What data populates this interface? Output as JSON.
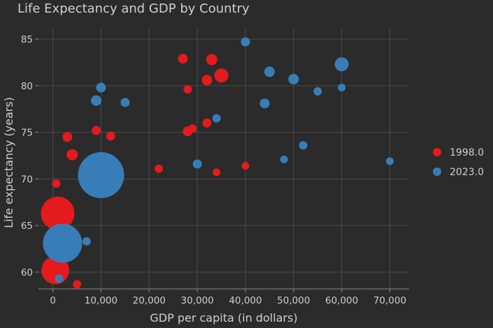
{
  "chart_data": {
    "type": "scatter",
    "title": "Life Expectancy and GDP by Country",
    "xlabel": "GDP per capita (in dollars)",
    "ylabel": "Life expectancy (years)",
    "xlim": [
      -3000,
      74000
    ],
    "ylim": [
      58.2,
      86.2
    ],
    "x_ticks": [
      0,
      10000,
      20000,
      30000,
      40000,
      50000,
      60000,
      70000
    ],
    "x_tick_labels": [
      "0",
      "10,000",
      "20,000",
      "30,000",
      "40,000",
      "50,000",
      "60,000",
      "70,000"
    ],
    "y_ticks": [
      60,
      65,
      70,
      75,
      80,
      85
    ],
    "y_tick_labels": [
      "60",
      "65",
      "70",
      "75",
      "80",
      "85"
    ],
    "grid": true,
    "legend_position": "right",
    "series": [
      {
        "name": "1998.0",
        "color": "#e41a1c",
        "points": [
          {
            "x": 27000,
            "y": 82.9,
            "size": 7
          },
          {
            "x": 33000,
            "y": 82.8,
            "size": 8
          },
          {
            "x": 35000,
            "y": 81.1,
            "size": 10
          },
          {
            "x": 32000,
            "y": 80.6,
            "size": 7.5
          },
          {
            "x": 28000,
            "y": 79.6,
            "size": 6
          },
          {
            "x": 9000,
            "y": 75.2,
            "size": 6.5
          },
          {
            "x": 12000,
            "y": 74.6,
            "size": 6.5
          },
          {
            "x": 3000,
            "y": 74.5,
            "size": 7
          },
          {
            "x": 32000,
            "y": 76.0,
            "size": 6.5
          },
          {
            "x": 29000,
            "y": 75.4,
            "size": 6
          },
          {
            "x": 28000,
            "y": 75.1,
            "size": 7
          },
          {
            "x": 4000,
            "y": 72.6,
            "size": 8
          },
          {
            "x": 22000,
            "y": 71.1,
            "size": 6
          },
          {
            "x": 34000,
            "y": 70.7,
            "size": 5.5
          },
          {
            "x": 40000,
            "y": 71.4,
            "size": 5.5
          },
          {
            "x": 700,
            "y": 69.5,
            "size": 6
          },
          {
            "x": 1000,
            "y": 66.3,
            "size": 24
          },
          {
            "x": 500,
            "y": 60.2,
            "size": 20
          },
          {
            "x": 5000,
            "y": 58.7,
            "size": 6
          }
        ]
      },
      {
        "name": "2023.0",
        "color": "#377eb8",
        "points": [
          {
            "x": 40000,
            "y": 84.7,
            "size": 6.5
          },
          {
            "x": 60000,
            "y": 82.3,
            "size": 10
          },
          {
            "x": 45000,
            "y": 81.5,
            "size": 7.5
          },
          {
            "x": 50000,
            "y": 80.7,
            "size": 7.5
          },
          {
            "x": 10000,
            "y": 79.8,
            "size": 7
          },
          {
            "x": 60000,
            "y": 79.8,
            "size": 5.5
          },
          {
            "x": 55000,
            "y": 79.4,
            "size": 6
          },
          {
            "x": 9000,
            "y": 78.4,
            "size": 7.5
          },
          {
            "x": 15000,
            "y": 78.2,
            "size": 6.5
          },
          {
            "x": 44000,
            "y": 78.1,
            "size": 7
          },
          {
            "x": 34000,
            "y": 76.5,
            "size": 6
          },
          {
            "x": 52000,
            "y": 73.6,
            "size": 6
          },
          {
            "x": 48000,
            "y": 72.1,
            "size": 5.5
          },
          {
            "x": 70000,
            "y": 71.9,
            "size": 5.5
          },
          {
            "x": 30000,
            "y": 71.6,
            "size": 6.5
          },
          {
            "x": 10000,
            "y": 70.4,
            "size": 33
          },
          {
            "x": 7000,
            "y": 63.3,
            "size": 6
          },
          {
            "x": 2000,
            "y": 63.1,
            "size": 28
          },
          {
            "x": 1300,
            "y": 59.3,
            "size": 6
          }
        ]
      }
    ]
  }
}
